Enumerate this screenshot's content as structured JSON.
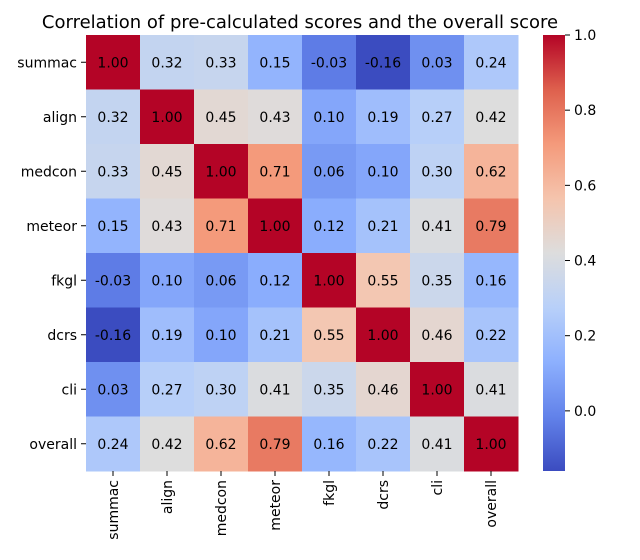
{
  "chart_data": {
    "type": "heatmap",
    "title": "Correlation of pre-calculated scores and the overall score",
    "rows": [
      "summac",
      "align",
      "medcon",
      "meteor",
      "fkgl",
      "dcrs",
      "cli",
      "overall"
    ],
    "columns": [
      "summac",
      "align",
      "medcon",
      "meteor",
      "fkgl",
      "dcrs",
      "cli",
      "overall"
    ],
    "values": [
      [
        1.0,
        0.32,
        0.33,
        0.15,
        -0.03,
        -0.16,
        0.03,
        0.24
      ],
      [
        0.32,
        1.0,
        0.45,
        0.43,
        0.1,
        0.19,
        0.27,
        0.42
      ],
      [
        0.33,
        0.45,
        1.0,
        0.71,
        0.06,
        0.1,
        0.3,
        0.62
      ],
      [
        0.15,
        0.43,
        0.71,
        1.0,
        0.12,
        0.21,
        0.41,
        0.79
      ],
      [
        -0.03,
        0.1,
        0.06,
        0.12,
        1.0,
        0.55,
        0.35,
        0.16
      ],
      [
        -0.16,
        0.19,
        0.1,
        0.21,
        0.55,
        1.0,
        0.46,
        0.22
      ],
      [
        0.03,
        0.27,
        0.3,
        0.41,
        0.35,
        0.46,
        1.0,
        0.41
      ],
      [
        0.24,
        0.42,
        0.62,
        0.79,
        0.16,
        0.22,
        0.41,
        1.0
      ]
    ],
    "colormap": "coolwarm",
    "vmin": -0.16,
    "vmax": 1.0,
    "colorbar_ticks": [
      0.0,
      0.2,
      0.4,
      0.6,
      0.8,
      1.0
    ],
    "colorbar_tick_labels": [
      "0.0",
      "0.2",
      "0.4",
      "0.6",
      "0.8",
      "1.0"
    ],
    "annotation_format": "0.00",
    "colors": {
      "low": "#3b4cc0",
      "mid": "#dddddd",
      "high": "#b40426"
    }
  }
}
